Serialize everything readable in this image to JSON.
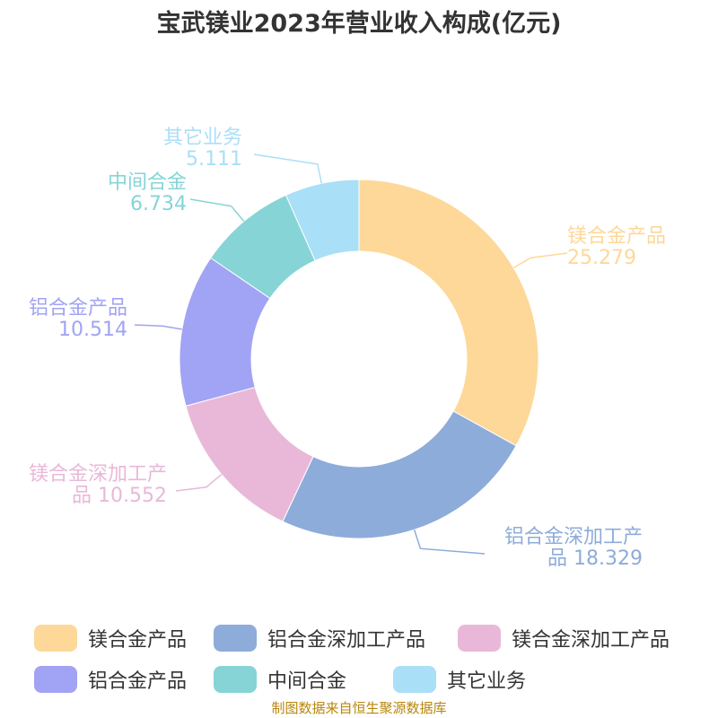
{
  "title": "宝武镁业2023年营业收入构成(亿元)",
  "source": "制图数据来自恒生聚源数据库",
  "chart_data": {
    "type": "pie",
    "variant": "donut",
    "title": "宝武镁业2023年营业收入构成(亿元)",
    "unit": "亿元",
    "slices": [
      {
        "name": "镁合金产品",
        "value": 25.279,
        "color": "#fdd899",
        "label_lines": [
          "镁合金产品",
          "25.279"
        ]
      },
      {
        "name": "铝合金深加工产品",
        "value": 18.329,
        "color": "#8eacd9",
        "label_lines": [
          "铝合金深加工产",
          "品 18.329"
        ]
      },
      {
        "name": "镁合金深加工产品",
        "value": 10.552,
        "color": "#e9b8d8",
        "label_lines": [
          "镁合金深加工产",
          "品 10.552"
        ]
      },
      {
        "name": "铝合金产品",
        "value": 10.514,
        "color": "#a1a3f4",
        "label_lines": [
          "铝合金产品",
          "10.514"
        ]
      },
      {
        "name": "中间合金",
        "value": 6.734,
        "color": "#86d4d6",
        "label_lines": [
          "中间合金",
          "6.734"
        ]
      },
      {
        "name": "其它业务",
        "value": 5.111,
        "color": "#aadff8",
        "label_lines": [
          "其它业务",
          "5.111"
        ]
      }
    ],
    "legend_position": "bottom"
  }
}
